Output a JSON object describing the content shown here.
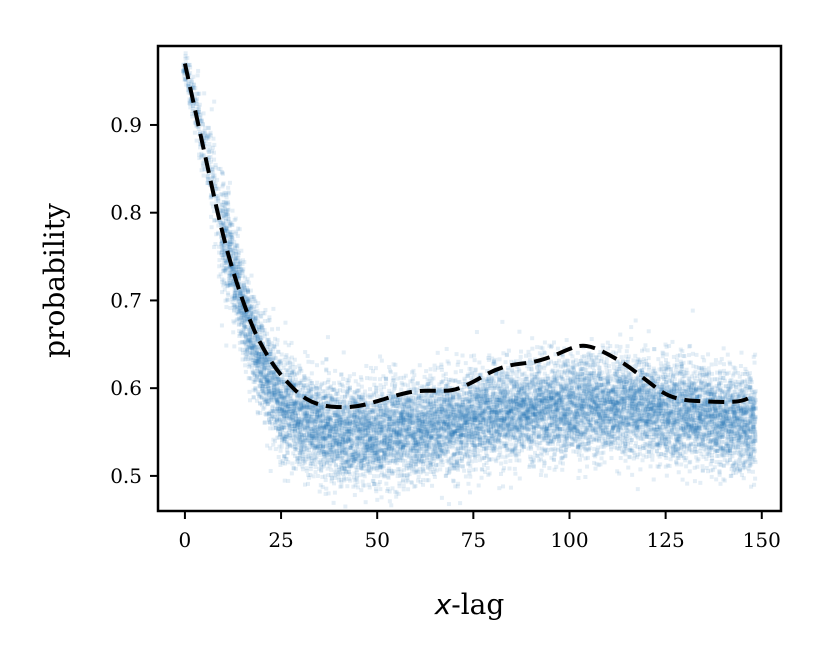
{
  "chart_data": {
    "type": "scatter",
    "xlabel": {
      "italic": "x",
      "rest": "-lag"
    },
    "ylabel": "probability",
    "xlim": [
      -7,
      155
    ],
    "ylim": [
      0.46,
      0.99
    ],
    "x_ticks": [
      0,
      25,
      50,
      75,
      100,
      125,
      150
    ],
    "x_tick_labels": [
      "0",
      "25",
      "50",
      "75",
      "100",
      "125",
      "150"
    ],
    "y_ticks": [
      0.5,
      0.6,
      0.7,
      0.8,
      0.9
    ],
    "y_tick_labels": [
      "0.5",
      "0.6",
      "0.7",
      "0.8",
      "0.9"
    ],
    "grid": false,
    "legend": "none",
    "scatter": {
      "color": "#1f77b4",
      "x_range": [
        0,
        148
      ],
      "center_curve": {
        "x": [
          0,
          5,
          10,
          15,
          20,
          25,
          30,
          35,
          40,
          50,
          60,
          70,
          80,
          90,
          100,
          110,
          120,
          130,
          140,
          148
        ],
        "y": [
          0.965,
          0.88,
          0.78,
          0.69,
          0.625,
          0.585,
          0.565,
          0.555,
          0.55,
          0.548,
          0.552,
          0.56,
          0.57,
          0.575,
          0.578,
          0.58,
          0.578,
          0.572,
          0.565,
          0.56
        ]
      },
      "approx_band_halfwidth": 0.05
    },
    "dashed_line": {
      "color": "#000000",
      "style": "dashed",
      "x": [
        0,
        3,
        6,
        9,
        12,
        15,
        18,
        21,
        24,
        27,
        30,
        33,
        36,
        40,
        45,
        50,
        55,
        60,
        65,
        70,
        75,
        80,
        85,
        90,
        95,
        100,
        103,
        106,
        110,
        115,
        120,
        125,
        130,
        135,
        140,
        145,
        148
      ],
      "y": [
        0.97,
        0.91,
        0.85,
        0.79,
        0.74,
        0.7,
        0.665,
        0.64,
        0.62,
        0.605,
        0.592,
        0.584,
        0.58,
        0.578,
        0.579,
        0.585,
        0.592,
        0.597,
        0.597,
        0.597,
        0.607,
        0.62,
        0.627,
        0.629,
        0.635,
        0.645,
        0.649,
        0.647,
        0.639,
        0.626,
        0.609,
        0.592,
        0.586,
        0.585,
        0.584,
        0.585,
        0.592
      ]
    }
  }
}
